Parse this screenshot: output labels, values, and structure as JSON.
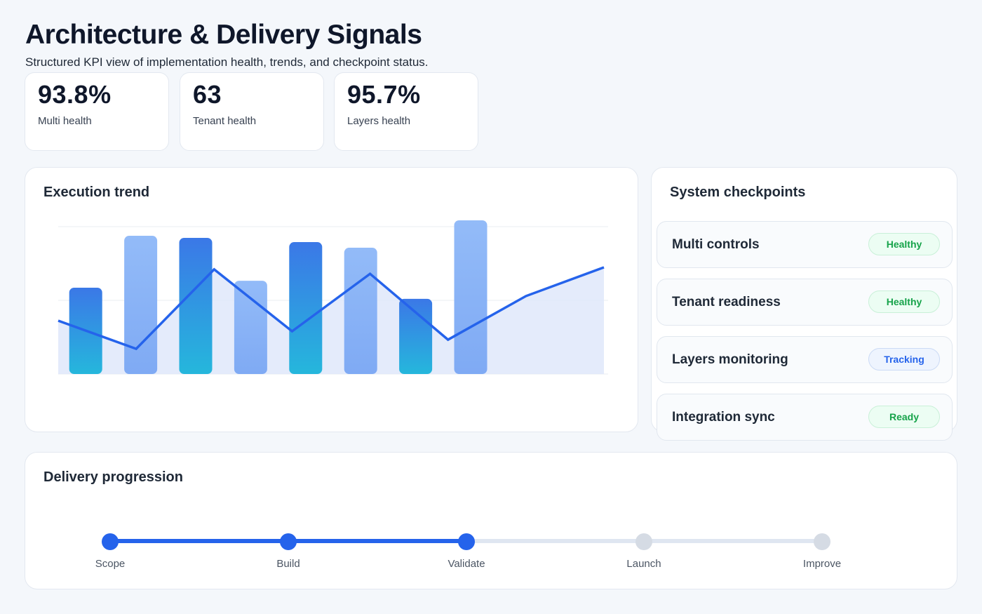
{
  "header": {
    "title": "Architecture & Delivery Signals",
    "subtitle": "Structured KPI view of implementation health, trends, and checkpoint status."
  },
  "kpis": [
    {
      "value": "93.8%",
      "label": "Multi health"
    },
    {
      "value": "63",
      "label": "Tenant health"
    },
    {
      "value": "95.7%",
      "label": "Layers health"
    }
  ],
  "trend": {
    "title": "Execution trend"
  },
  "chart_data": {
    "type": "bar",
    "title": "Execution trend",
    "ylim": [
      0,
      100
    ],
    "grid": true,
    "bars": [
      58.6,
      93.8,
      92.4,
      63.3,
      89.5,
      85.7,
      51,
      104.3
    ],
    "line": [
      36.2,
      17.1,
      71,
      29,
      68,
      23.3,
      52.9,
      72.4
    ],
    "colors": {
      "bar_dark": "#3b7be6",
      "bar_light": "#8fb6f7",
      "line": "#2563eb"
    }
  },
  "checkpoints": {
    "title": "System checkpoints",
    "items": [
      {
        "name": "Multi controls",
        "status": "Healthy",
        "kind": "g"
      },
      {
        "name": "Tenant readiness",
        "status": "Healthy",
        "kind": "g"
      },
      {
        "name": "Layers monitoring",
        "status": "Tracking",
        "kind": "t"
      },
      {
        "name": "Integration sync",
        "status": "Ready",
        "kind": "g"
      }
    ]
  },
  "delivery": {
    "title": "Delivery progression",
    "steps": [
      {
        "label": "Scope",
        "done": true
      },
      {
        "label": "Build",
        "done": true
      },
      {
        "label": "Validate",
        "done": true
      },
      {
        "label": "Launch",
        "done": false
      },
      {
        "label": "Improve",
        "done": false
      }
    ]
  }
}
